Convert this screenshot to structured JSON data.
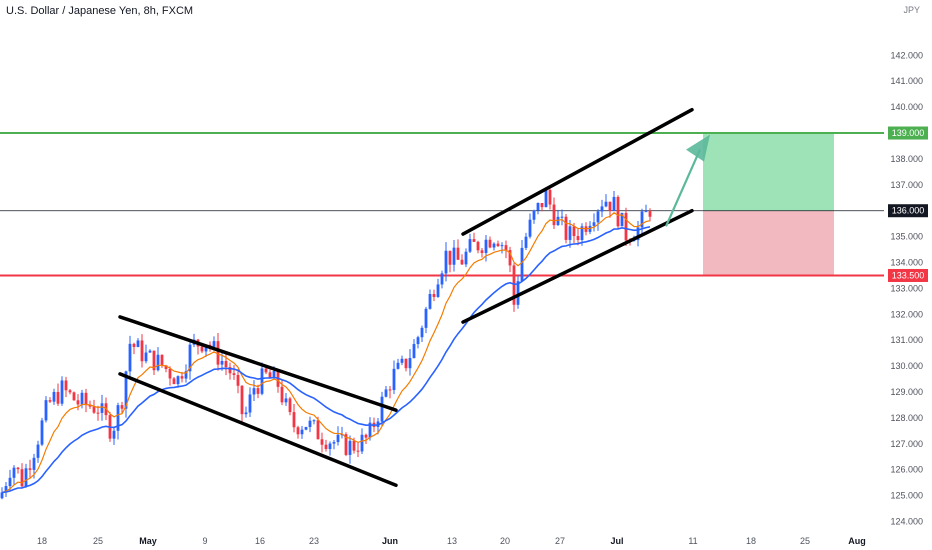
{
  "header": {
    "title": "U.S. Dollar / Japanese Yen, 8h, FXCM",
    "currency": "JPY"
  },
  "chart_data": {
    "type": "candlestick",
    "title": "U.S. Dollar / Japanese Yen, 8h, FXCM",
    "price_axis": {
      "ticks": [
        124,
        125,
        126,
        127,
        128,
        129,
        130,
        131,
        132,
        133,
        134,
        135,
        136,
        137,
        138,
        139,
        140,
        141,
        142
      ],
      "tick_labels": [
        "124.000",
        "125.000",
        "126.000",
        "127.000",
        "128.000",
        "129.000",
        "130.000",
        "131.000",
        "132.000",
        "133.000",
        "134.000",
        "135.000",
        "136.000",
        "137.000",
        "138.000",
        "139.000",
        "140.000",
        "141.000",
        "142.000"
      ],
      "range": [
        123.55,
        143.75
      ]
    },
    "time_axis": {
      "labels": [
        "18",
        "25",
        "May",
        "9",
        "16",
        "23",
        "Jun",
        "13",
        "20",
        "27",
        "Jul",
        "11",
        "18",
        "25",
        "Aug"
      ],
      "month_labels": [
        "May",
        "Jun",
        "Jul",
        "Aug"
      ]
    },
    "levels": [
      {
        "name": "target",
        "price": 139.0,
        "label": "139.000",
        "color": "#4caf50"
      },
      {
        "name": "current",
        "price": 136.0,
        "label": "136.000",
        "color": "#131722"
      },
      {
        "name": "support",
        "price": 133.5,
        "label": "133.500",
        "color": "#f23645"
      }
    ],
    "zones": [
      {
        "name": "profit-zone",
        "from": 136.0,
        "to": 139.0,
        "color": "#7ed9a0"
      },
      {
        "name": "loss-zone",
        "from": 133.5,
        "to": 136.0,
        "color": "#efa1ac"
      }
    ],
    "trendlines": [
      {
        "name": "falling-channel-top",
        "from": 131.9,
        "to": 128.3
      },
      {
        "name": "falling-channel-bottom",
        "from": 129.7,
        "to": 125.4
      },
      {
        "name": "rising-channel-top",
        "from": 135.1,
        "to": 139.9
      },
      {
        "name": "rising-channel-bottom",
        "from": 131.7,
        "to": 136.0
      }
    ],
    "candle_path": [
      [
        0,
        124.9
      ],
      [
        12,
        126.3
      ],
      [
        22,
        125.6
      ],
      [
        36,
        127.0
      ],
      [
        48,
        128.5
      ],
      [
        62,
        129.1
      ],
      [
        78,
        128.6
      ],
      [
        98,
        128.4
      ],
      [
        112,
        127.5
      ],
      [
        122,
        128.8
      ],
      [
        130,
        130.9
      ],
      [
        145,
        130.4
      ],
      [
        160,
        130.1
      ],
      [
        178,
        129.5
      ],
      [
        192,
        130.8
      ],
      [
        206,
        131.0
      ],
      [
        222,
        130.2
      ],
      [
        232,
        129.7
      ],
      [
        244,
        127.9
      ],
      [
        254,
        129.2
      ],
      [
        266,
        129.6
      ],
      [
        278,
        129.3
      ],
      [
        292,
        127.7
      ],
      [
        306,
        127.8
      ],
      [
        322,
        127.3
      ],
      [
        338,
        127.0
      ],
      [
        352,
        126.9
      ],
      [
        368,
        127.2
      ],
      [
        378,
        128.2
      ],
      [
        392,
        129.6
      ],
      [
        404,
        130.0
      ],
      [
        416,
        130.9
      ],
      [
        428,
        132.4
      ],
      [
        438,
        133.6
      ],
      [
        446,
        134.3
      ],
      [
        460,
        134.0
      ],
      [
        472,
        134.6
      ],
      [
        484,
        134.8
      ],
      [
        496,
        135.1
      ],
      [
        508,
        134.4
      ],
      [
        514,
        132.4
      ],
      [
        522,
        134.6
      ],
      [
        534,
        135.8
      ],
      [
        546,
        136.6
      ],
      [
        556,
        135.7
      ],
      [
        568,
        135.0
      ],
      [
        580,
        135.2
      ],
      [
        592,
        135.9
      ],
      [
        604,
        136.5
      ],
      [
        614,
        136.2
      ],
      [
        626,
        135.1
      ],
      [
        638,
        135.3
      ],
      [
        650,
        136.1
      ]
    ],
    "candle_colors": {
      "up": "#2962ff",
      "down": "#f23645"
    },
    "moving_averages": [
      {
        "color": "#f57c00"
      },
      {
        "color": "#2962ff"
      }
    ],
    "arrow": {
      "from": 135.4,
      "to": 138.9,
      "color": "#5bb89a"
    }
  }
}
